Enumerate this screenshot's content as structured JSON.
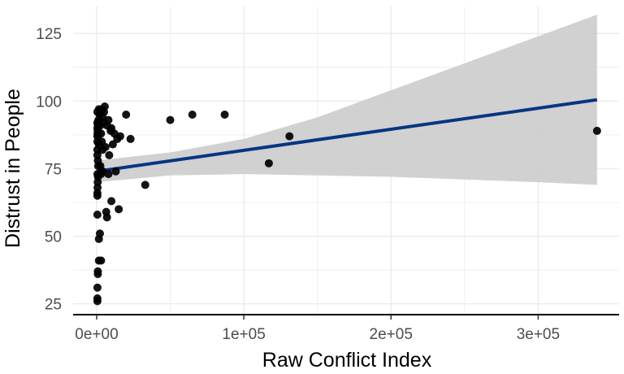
{
  "chart_data": {
    "type": "scatter",
    "title": "",
    "xlabel": "Raw Conflict Index",
    "ylabel": "Distrust in People",
    "xlim": [
      -16000,
      355000
    ],
    "ylim": [
      21,
      135
    ],
    "x_ticks": [
      0,
      100000,
      200000,
      300000
    ],
    "x_tick_labels": [
      "0e+00",
      "1e+05",
      "2e+05",
      "3e+05"
    ],
    "y_ticks": [
      25,
      50,
      75,
      100,
      125
    ],
    "y_tick_labels": [
      "25",
      "50",
      "75",
      "100",
      "125"
    ],
    "grid": true,
    "series": [
      {
        "name": "observations",
        "points": [
          [
            500,
            26
          ],
          [
            500,
            27
          ],
          [
            500,
            31
          ],
          [
            800,
            36
          ],
          [
            800,
            37
          ],
          [
            1500,
            41
          ],
          [
            3000,
            41
          ],
          [
            1500,
            49
          ],
          [
            2200,
            51
          ],
          [
            500,
            58
          ],
          [
            7000,
            57
          ],
          [
            6500,
            59
          ],
          [
            15000,
            60
          ],
          [
            10000,
            63
          ],
          [
            500,
            65
          ],
          [
            500,
            66
          ],
          [
            600,
            68
          ],
          [
            700,
            70
          ],
          [
            900,
            72
          ],
          [
            500,
            73
          ],
          [
            3000,
            73
          ],
          [
            4000,
            74
          ],
          [
            8000,
            73
          ],
          [
            13000,
            74
          ],
          [
            1000,
            76
          ],
          [
            2500,
            76
          ],
          [
            33000,
            69
          ],
          [
            800,
            78
          ],
          [
            500,
            80
          ],
          [
            8500,
            80
          ],
          [
            500,
            82
          ],
          [
            4000,
            82
          ],
          [
            6000,
            83
          ],
          [
            500,
            85
          ],
          [
            3500,
            85
          ],
          [
            1500,
            84
          ],
          [
            11000,
            84
          ],
          [
            14000,
            86
          ],
          [
            16000,
            87
          ],
          [
            23000,
            86
          ],
          [
            500,
            87
          ],
          [
            600,
            88
          ],
          [
            700,
            89
          ],
          [
            3000,
            88
          ],
          [
            9500,
            89
          ],
          [
            12000,
            88
          ],
          [
            500,
            90
          ],
          [
            800,
            91
          ],
          [
            2500,
            91
          ],
          [
            5000,
            92
          ],
          [
            7000,
            91
          ],
          [
            10000,
            90
          ],
          [
            500,
            92
          ],
          [
            1200,
            93
          ],
          [
            4000,
            94
          ],
          [
            8000,
            93
          ],
          [
            2000,
            95
          ],
          [
            5000,
            96
          ],
          [
            20000,
            95
          ],
          [
            500,
            96
          ],
          [
            1500,
            97
          ],
          [
            3500,
            97
          ],
          [
            5500,
            98
          ],
          [
            50000,
            93
          ],
          [
            65000,
            95
          ],
          [
            87000,
            95
          ],
          [
            117000,
            77
          ],
          [
            131000,
            87
          ],
          [
            340000,
            89
          ]
        ]
      }
    ],
    "fit_line": {
      "x": [
        0,
        340000
      ],
      "y": [
        74,
        100.5
      ]
    },
    "confidence_band": {
      "x": [
        0,
        50000,
        100000,
        150000,
        200000,
        250000,
        300000,
        340000
      ],
      "lower": [
        70,
        72.5,
        73,
        72.5,
        72,
        71,
        70,
        69
      ],
      "upper": [
        78,
        81,
        86,
        94,
        104,
        114,
        124,
        132
      ]
    },
    "colors": {
      "points": "#000000",
      "fit_line": "#063680",
      "band": "#cccccc",
      "grid": "#ebebeb",
      "axis": "#000000"
    }
  }
}
